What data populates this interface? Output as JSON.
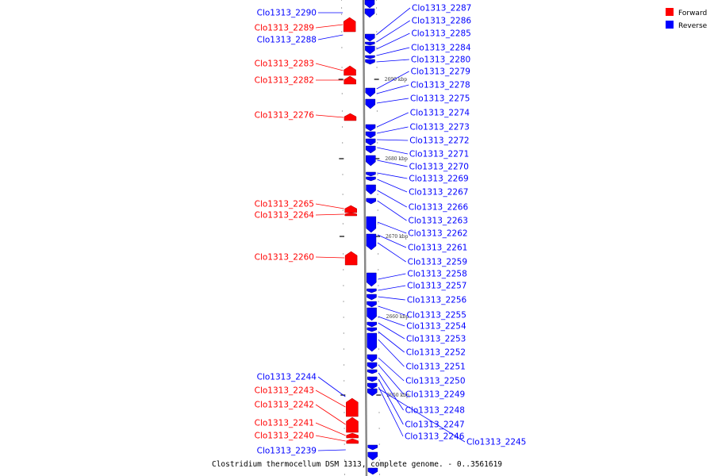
{
  "caption": "Clostridium thermocellum DSM 1313, complete genome. - 0..3561619",
  "legend": [
    {
      "label": "Forward",
      "color": "#ff0000"
    },
    {
      "label": "Reverse",
      "color": "#0000ff"
    }
  ],
  "colors": {
    "forward": "#ff0000",
    "reverse": "#0000ff",
    "axis": "#888888"
  },
  "scale_marks": [
    "2690 kbp",
    "2680 kbp",
    "2670 kbp",
    "2660 kbp",
    "2650 kbp"
  ],
  "forward_genes": [
    "Clo1313_2289",
    "Clo1313_2283",
    "Clo1313_2282",
    "Clo1313_2276",
    "Clo1313_2265",
    "Clo1313_2264",
    "Clo1313_2260",
    "Clo1313_2243",
    "Clo1313_2242",
    "Clo1313_2241",
    "Clo1313_2240"
  ],
  "reverse_genes_left": [
    "Clo1313_2290",
    "Clo1313_2288",
    "Clo1313_2244",
    "Clo1313_2239"
  ],
  "reverse_genes_right": [
    "Clo1313_2287",
    "Clo1313_2286",
    "Clo1313_2285",
    "Clo1313_2284",
    "Clo1313_2280",
    "Clo1313_2279",
    "Clo1313_2278",
    "Clo1313_2275",
    "Clo1313_2274",
    "Clo1313_2273",
    "Clo1313_2272",
    "Clo1313_2271",
    "Clo1313_2270",
    "Clo1313_2269",
    "Clo1313_2267",
    "Clo1313_2266",
    "Clo1313_2263",
    "Clo1313_2262",
    "Clo1313_2261",
    "Clo1313_2259",
    "Clo1313_2258",
    "Clo1313_2257",
    "Clo1313_2256",
    "Clo1313_2255",
    "Clo1313_2254",
    "Clo1313_2253",
    "Clo1313_2252",
    "Clo1313_2251",
    "Clo1313_2250",
    "Clo1313_2249",
    "Clo1313_2248",
    "Clo1313_2247",
    "Clo1313_2246",
    "Clo1313_2245"
  ]
}
